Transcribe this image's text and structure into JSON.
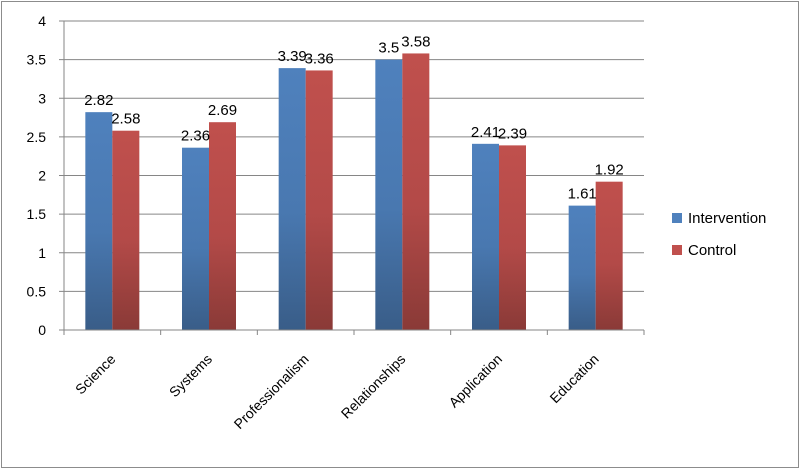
{
  "chart_data": {
    "type": "bar",
    "categories": [
      "Science",
      "Systems",
      "Professionalism",
      "Relationships",
      "Application",
      "Education"
    ],
    "series": [
      {
        "name": "Intervention",
        "values": [
          2.82,
          2.36,
          3.39,
          3.5,
          2.41,
          1.61
        ],
        "labels": [
          "2.82",
          "2.36",
          "3.39",
          "3.5",
          "2.41",
          "1.61"
        ],
        "color": "#4f81bd"
      },
      {
        "name": "Control",
        "values": [
          2.58,
          2.69,
          3.36,
          3.58,
          2.39,
          1.92
        ],
        "labels": [
          "2.58",
          "2.69",
          "3.36",
          "3.58",
          "2.39",
          "1.92"
        ],
        "color": "#c0504d"
      }
    ],
    "title": "",
    "xlabel": "",
    "ylabel": "",
    "ylim": [
      0,
      4
    ],
    "yticks": [
      "0",
      "0.5",
      "1",
      "1.5",
      "2",
      "2.5",
      "3",
      "3.5",
      "4"
    ],
    "grid": true,
    "legend_position": "right",
    "colors": {
      "gridline": "#868686",
      "axis": "#868686"
    }
  }
}
